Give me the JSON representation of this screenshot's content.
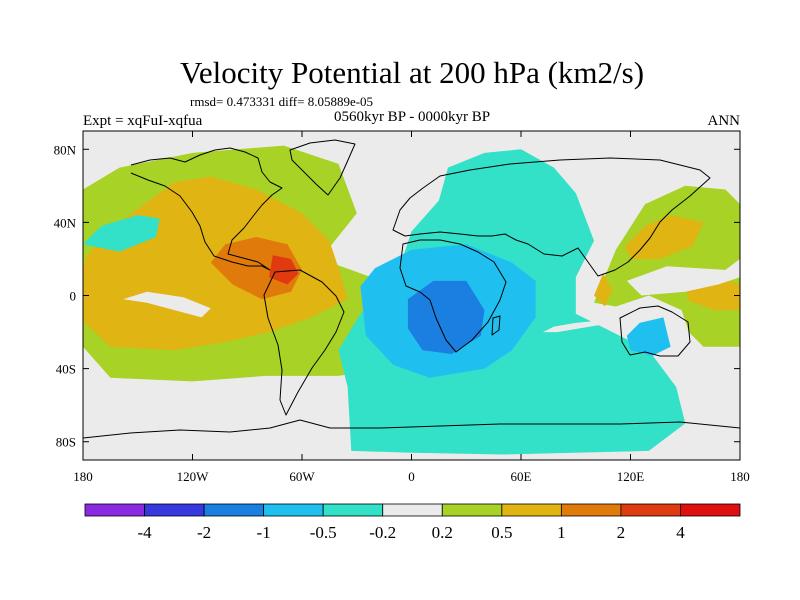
{
  "chart_data": {
    "type": "heatmap",
    "title": "Velocity Potential at 200 hPa (km2/s)",
    "stats_text": "rmsd= 0.473331  diff= 8.05889e-05",
    "period_text": "0560kyr BP - 0000kyr BP",
    "left_label": "Expt = xqFuI-xqfua",
    "right_label": "ANN",
    "x_axis": {
      "range": [
        -180,
        180
      ],
      "ticks": [
        -180,
        -120,
        -60,
        0,
        60,
        120,
        180
      ],
      "tick_labels": [
        "180",
        "120W",
        "60W",
        "0",
        "60E",
        "120E",
        "180"
      ]
    },
    "y_axis": {
      "range": [
        -90,
        90
      ],
      "ticks": [
        80,
        40,
        0,
        -40,
        -80
      ],
      "tick_labels": [
        "80N",
        "40N",
        "0",
        "40S",
        "80S"
      ]
    },
    "colorbar": {
      "levels": [
        "-4",
        "-2",
        "-1",
        "-0.5",
        "-0.2",
        "0.2",
        "0.5",
        "1",
        "2",
        "4"
      ],
      "colors": [
        "#8a2be2",
        "#3838e0",
        "#1a7fe0",
        "#1fc0f0",
        "#33e0c8",
        "#ebebeb",
        "#a8d225",
        "#e0b412",
        "#e07a0a",
        "#e03a10",
        "#e01010"
      ]
    },
    "regions": [
      {
        "name": "pacific-atlantic-positive",
        "bin": 6,
        "polygon": [
          [
            -180,
            -28
          ],
          [
            -165,
            -45
          ],
          [
            -120,
            -47
          ],
          [
            -80,
            -44
          ],
          [
            -40,
            -44
          ],
          [
            -15,
            -40
          ],
          [
            -5,
            -20
          ],
          [
            -22,
            10
          ],
          [
            -50,
            20
          ],
          [
            -30,
            45
          ],
          [
            -40,
            72
          ],
          [
            -70,
            82
          ],
          [
            -120,
            78
          ],
          [
            -160,
            70
          ],
          [
            -180,
            58
          ]
        ]
      },
      {
        "name": "pacific-atlantic-positive-2",
        "bin": 7,
        "polygon": [
          [
            -180,
            -14
          ],
          [
            -165,
            -28
          ],
          [
            -130,
            -30
          ],
          [
            -100,
            -25
          ],
          [
            -78,
            -20
          ],
          [
            -55,
            -12
          ],
          [
            -35,
            -2
          ],
          [
            -40,
            15
          ],
          [
            -45,
            30
          ],
          [
            -60,
            45
          ],
          [
            -85,
            58
          ],
          [
            -110,
            65
          ],
          [
            -130,
            62
          ],
          [
            -160,
            40
          ],
          [
            -178,
            22
          ],
          [
            -180,
            15
          ]
        ]
      },
      {
        "name": "caribbean-positive-max",
        "bin": 8,
        "polygon": [
          [
            -110,
            18
          ],
          [
            -98,
            6
          ],
          [
            -82,
            -2
          ],
          [
            -66,
            2
          ],
          [
            -60,
            14
          ],
          [
            -68,
            28
          ],
          [
            -85,
            32
          ],
          [
            -102,
            28
          ]
        ]
      },
      {
        "name": "caribbean-core",
        "bin": 9,
        "polygon": [
          [
            -78,
            10
          ],
          [
            -68,
            6
          ],
          [
            -62,
            12
          ],
          [
            -66,
            20
          ],
          [
            -76,
            22
          ]
        ]
      },
      {
        "name": "north-pacific-weak-neg",
        "bin": 4,
        "polygon": [
          [
            -180,
            28
          ],
          [
            -170,
            38
          ],
          [
            -150,
            44
          ],
          [
            -138,
            42
          ],
          [
            -140,
            32
          ],
          [
            -160,
            24
          ]
        ]
      },
      {
        "name": "south-pacific-neutral",
        "bin": 5,
        "polygon": [
          [
            -158,
            -2
          ],
          [
            -145,
            -4
          ],
          [
            -130,
            -8
          ],
          [
            -115,
            -12
          ],
          [
            -110,
            -7
          ],
          [
            -125,
            -1
          ],
          [
            -145,
            2
          ]
        ]
      },
      {
        "name": "southern-ocean-neutral",
        "bin": 5,
        "polygon": [
          [
            -180,
            -50
          ],
          [
            -140,
            -52
          ],
          [
            -100,
            -51
          ],
          [
            -65,
            -49
          ],
          [
            -40,
            -48
          ],
          [
            -28,
            -55
          ],
          [
            -32,
            -75
          ],
          [
            -90,
            -70
          ],
          [
            -180,
            -75
          ]
        ]
      },
      {
        "name": "atlantic-indian-negative",
        "bin": 4,
        "polygon": [
          [
            -33,
            -85
          ],
          [
            -35,
            -50
          ],
          [
            -40,
            -30
          ],
          [
            -28,
            -10
          ],
          [
            -10,
            5
          ],
          [
            0,
            35
          ],
          [
            15,
            52
          ],
          [
            20,
            70
          ],
          [
            40,
            78
          ],
          [
            60,
            80
          ],
          [
            78,
            70
          ],
          [
            90,
            56
          ],
          [
            100,
            30
          ],
          [
            90,
            10
          ],
          [
            90,
            -10
          ],
          [
            130,
            -30
          ],
          [
            145,
            -50
          ],
          [
            150,
            -70
          ],
          [
            130,
            -85
          ],
          [
            50,
            -87
          ],
          [
            0,
            -86
          ]
        ]
      },
      {
        "name": "africa-negative",
        "bin": 3,
        "polygon": [
          [
            -28,
            5
          ],
          [
            -20,
            15
          ],
          [
            0,
            25
          ],
          [
            30,
            28
          ],
          [
            55,
            18
          ],
          [
            68,
            8
          ],
          [
            68,
            -12
          ],
          [
            55,
            -30
          ],
          [
            40,
            -40
          ],
          [
            10,
            -45
          ],
          [
            -10,
            -38
          ],
          [
            -25,
            -22
          ]
        ]
      },
      {
        "name": "africa-negative-core",
        "bin": 2,
        "polygon": [
          [
            -2,
            -2
          ],
          [
            12,
            8
          ],
          [
            30,
            8
          ],
          [
            40,
            -8
          ],
          [
            38,
            -22
          ],
          [
            22,
            -32
          ],
          [
            6,
            -30
          ],
          [
            -2,
            -18
          ]
        ]
      },
      {
        "name": "maritime-weak-negative",
        "bin": 3,
        "polygon": [
          [
            118,
            -22
          ],
          [
            125,
            -15
          ],
          [
            138,
            -12
          ],
          [
            142,
            -28
          ],
          [
            132,
            -33
          ],
          [
            120,
            -30
          ]
        ]
      },
      {
        "name": "east-asia-positive",
        "bin": 6,
        "polygon": [
          [
            100,
            -4
          ],
          [
            112,
            25
          ],
          [
            128,
            50
          ],
          [
            150,
            60
          ],
          [
            172,
            58
          ],
          [
            180,
            50
          ],
          [
            180,
            -28
          ],
          [
            160,
            -28
          ],
          [
            152,
            -20
          ],
          [
            148,
            -8
          ],
          [
            130,
            0
          ],
          [
            112,
            -6
          ]
        ]
      },
      {
        "name": "east-asia-positive-2",
        "bin": 7,
        "polygon": [
          [
            117,
            27
          ],
          [
            128,
            38
          ],
          [
            142,
            44
          ],
          [
            160,
            40
          ],
          [
            154,
            27
          ],
          [
            136,
            20
          ],
          [
            120,
            20
          ]
        ]
      },
      {
        "name": "west-pacific-positive-2",
        "bin": 7,
        "polygon": [
          [
            150,
            5
          ],
          [
            168,
            10
          ],
          [
            180,
            6
          ],
          [
            180,
            -8
          ],
          [
            166,
            -8
          ],
          [
            152,
            -3
          ]
        ]
      },
      {
        "name": "tropical-neutral-wedge",
        "bin": 5,
        "polygon": [
          [
            118,
            8
          ],
          [
            140,
            16
          ],
          [
            172,
            14
          ],
          [
            180,
            20
          ],
          [
            180,
            10
          ],
          [
            168,
            6
          ],
          [
            150,
            2
          ],
          [
            126,
            0
          ]
        ]
      },
      {
        "name": "indochina-positive-2",
        "bin": 7,
        "polygon": [
          [
            100,
            0
          ],
          [
            105,
            12
          ],
          [
            110,
            3
          ],
          [
            106,
            -6
          ]
        ]
      },
      {
        "name": "indian-ocean-neutral-streak",
        "bin": 5,
        "polygon": [
          [
            72,
            -20
          ],
          [
            78,
            -17
          ],
          [
            90,
            -15
          ],
          [
            100,
            -14
          ],
          [
            104,
            -16
          ],
          [
            92,
            -18
          ],
          [
            80,
            -20
          ]
        ]
      }
    ]
  }
}
